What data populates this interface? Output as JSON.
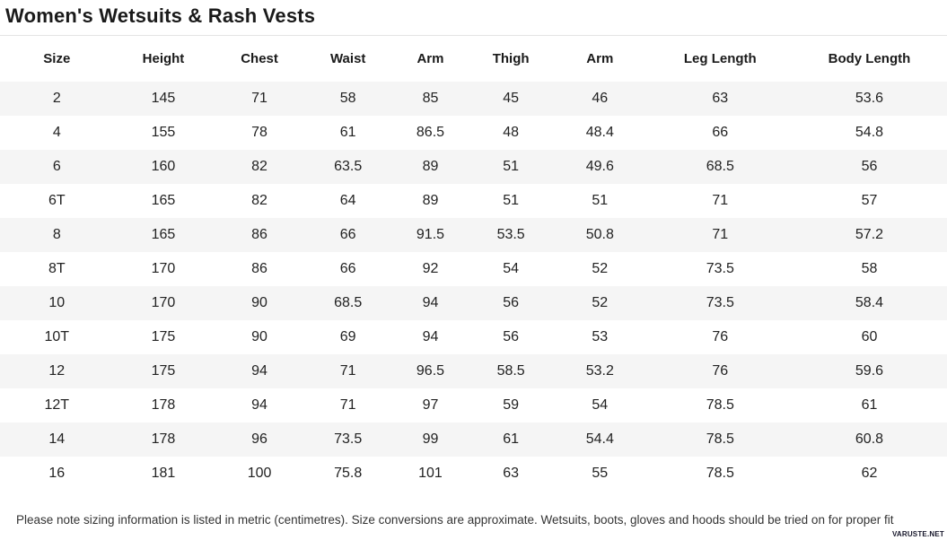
{
  "page": {
    "title": "Women's Wetsuits & Rash Vests",
    "note": "Please note sizing information is listed in metric (centimetres). Size conversions are approximate. Wetsuits, boots, gloves and hoods should be tried on for proper fit",
    "watermark": "VARUSTE.NET"
  },
  "colors": {
    "row_stripe": "#f5f5f5",
    "divider": "#e4e4e4",
    "text": "#1e1e1e"
  },
  "chart_data": {
    "type": "table",
    "title": "Women's Wetsuits & Rash Vests",
    "columns": [
      "Size",
      "Height",
      "Chest",
      "Waist",
      "Arm",
      "Thigh",
      "Arm",
      "Leg Length",
      "Body Length"
    ],
    "units": "centimetres",
    "rows": [
      [
        "2",
        "145",
        "71",
        "58",
        "85",
        "45",
        "46",
        "63",
        "53.6"
      ],
      [
        "4",
        "155",
        "78",
        "61",
        "86.5",
        "48",
        "48.4",
        "66",
        "54.8"
      ],
      [
        "6",
        "160",
        "82",
        "63.5",
        "89",
        "51",
        "49.6",
        "68.5",
        "56"
      ],
      [
        "6T",
        "165",
        "82",
        "64",
        "89",
        "51",
        "51",
        "71",
        "57"
      ],
      [
        "8",
        "165",
        "86",
        "66",
        "91.5",
        "53.5",
        "50.8",
        "71",
        "57.2"
      ],
      [
        "8T",
        "170",
        "86",
        "66",
        "92",
        "54",
        "52",
        "73.5",
        "58"
      ],
      [
        "10",
        "170",
        "90",
        "68.5",
        "94",
        "56",
        "52",
        "73.5",
        "58.4"
      ],
      [
        "10T",
        "175",
        "90",
        "69",
        "94",
        "56",
        "53",
        "76",
        "60"
      ],
      [
        "12",
        "175",
        "94",
        "71",
        "96.5",
        "58.5",
        "53.2",
        "76",
        "59.6"
      ],
      [
        "12T",
        "178",
        "94",
        "71",
        "97",
        "59",
        "54",
        "78.5",
        "61"
      ],
      [
        "14",
        "178",
        "96",
        "73.5",
        "99",
        "61",
        "54.4",
        "78.5",
        "60.8"
      ],
      [
        "16",
        "181",
        "100",
        "75.8",
        "101",
        "63",
        "55",
        "78.5",
        "62"
      ]
    ],
    "column_widths_pct": [
      12,
      10.5,
      9.8,
      8.9,
      8.5,
      8.5,
      10.3,
      15.1,
      16.4
    ],
    "layout": {
      "striped": true,
      "first_row_shaded": true,
      "text_align": "center"
    }
  }
}
